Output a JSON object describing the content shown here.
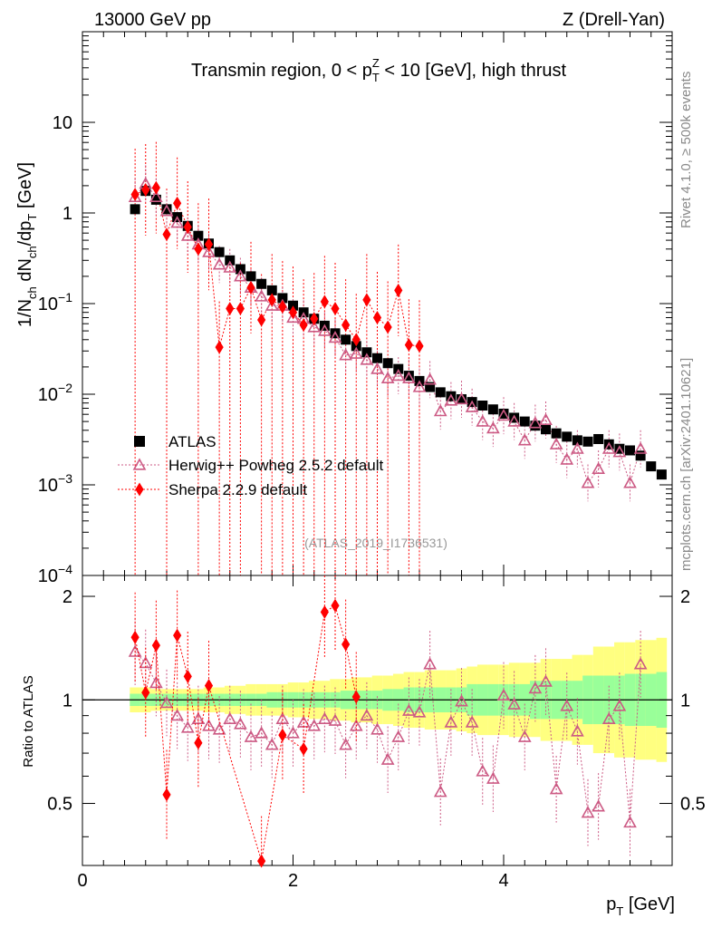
{
  "header": {
    "left": "13000 GeV pp",
    "right": "Z (Drell-Yan)"
  },
  "side_labels": {
    "rivet": "Rivet 4.1.0, ≥ 500k events",
    "mcplots": "mcplots.cern.ch [arXiv:2401.10621]"
  },
  "chart_data": {
    "type": "scatter",
    "title": "Transmin region, 0 < pTZ < 10 [GeV], high thrust",
    "title_parts": {
      "before": "Transmin region, 0 < p",
      "sup": "Z",
      "sub": "T",
      "after": " < 10 [GeV], high thrust"
    },
    "analysis_tag": "(ATLAS_2019_I1736531)",
    "xlabel": "pT [GeV]",
    "ylabel": "1/Nch dNch/dpT [GeV]",
    "ratio_ylabel": "Ratio to ATLAS",
    "xlim": [
      0,
      5.6
    ],
    "ylim": [
      0.0001,
      100
    ],
    "ratio_ylim": [
      0.33,
      2.3
    ],
    "x_ticks": [
      "0",
      "2",
      "4"
    ],
    "y_ticks": [
      "10^-4",
      "10^-3",
      "10^-2",
      "10^-1",
      "1",
      "10"
    ],
    "ratio_ticks": [
      "0.5",
      "1",
      "2"
    ],
    "x": [
      0.5,
      0.6,
      0.7,
      0.8,
      0.9,
      1.0,
      1.1,
      1.2,
      1.3,
      1.4,
      1.5,
      1.6,
      1.7,
      1.8,
      1.9,
      2.0,
      2.1,
      2.2,
      2.3,
      2.4,
      2.5,
      2.6,
      2.7,
      2.8,
      2.9,
      3.0,
      3.1,
      3.2,
      3.3,
      3.4,
      3.5,
      3.6,
      3.7,
      3.8,
      3.9,
      4.0,
      4.1,
      4.2,
      4.3,
      4.4,
      4.5,
      4.6,
      4.7,
      4.8,
      4.9,
      5.0,
      5.1,
      5.2,
      5.3,
      5.4,
      5.5
    ],
    "legend": [
      "ATLAS",
      "Herwig++ Powheg 2.5.2 default",
      "Sherpa 2.2.9 default"
    ],
    "series": [
      {
        "name": "ATLAS",
        "color": "#000000",
        "marker": "square",
        "values": [
          1.1,
          1.75,
          1.4,
          1.1,
          0.9,
          0.72,
          0.56,
          0.46,
          0.37,
          0.3,
          0.24,
          0.2,
          0.165,
          0.14,
          0.115,
          0.095,
          0.08,
          0.068,
          0.057,
          0.047,
          0.04,
          0.034,
          0.029,
          0.025,
          0.022,
          0.019,
          0.016,
          0.014,
          0.012,
          0.0105,
          0.0095,
          0.0088,
          0.0082,
          0.0075,
          0.0068,
          0.0061,
          0.0055,
          0.005,
          0.0045,
          0.0041,
          0.0037,
          0.0034,
          0.0031,
          0.003,
          0.0032,
          0.0028,
          0.0025,
          0.0024,
          0.0021,
          0.0016,
          0.0013
        ]
      },
      {
        "name": "Herwig++ Powheg 2.5.2 default",
        "color": "#cc5a84",
        "marker": "triangle",
        "values": [
          1.5,
          2.1,
          1.5,
          1.05,
          0.78,
          0.56,
          0.45,
          0.37,
          0.27,
          0.25,
          0.2,
          0.15,
          0.12,
          0.095,
          0.095,
          0.07,
          0.068,
          0.055,
          0.05,
          0.042,
          0.027,
          0.028,
          0.024,
          0.019,
          0.015,
          0.016,
          0.015,
          0.012,
          0.0145,
          0.0065,
          0.0085,
          0.0088,
          0.0072,
          0.005,
          0.0042,
          0.0058,
          0.005,
          0.0031,
          0.0048,
          0.0052,
          0.0028,
          0.0019,
          0.0025,
          0.00105,
          0.0015,
          0.0025,
          0.0023,
          0.00105,
          0.0025
        ]
      },
      {
        "name": "Sherpa 2.2.9 default",
        "color": "#ff0000",
        "marker": "diamond",
        "values": [
          1.6,
          1.8,
          1.9,
          0.58,
          1.28,
          0.7,
          0.4,
          0.45,
          0.033,
          0.088,
          0.088,
          0.15,
          0.066,
          0.11,
          0.092,
          0.08,
          0.058,
          0.068,
          0.105,
          0.088,
          0.058,
          0.04,
          0.11,
          0.07,
          0.055,
          0.14,
          0.035,
          0.034
        ]
      }
    ],
    "ratio_series": [
      {
        "name": "Herwig++ Powheg 2.5.2 default",
        "values": [
          1.38,
          1.28,
          1.12,
          0.98,
          0.9,
          0.83,
          0.88,
          0.84,
          0.82,
          0.88,
          0.85,
          0.78,
          0.8,
          0.74,
          0.88,
          0.8,
          0.86,
          0.84,
          0.88,
          0.87,
          0.74,
          0.84,
          0.9,
          0.82,
          0.67,
          0.78,
          0.93,
          0.92,
          1.27,
          0.54,
          0.86,
          0.99,
          0.86,
          0.62,
          0.59,
          1.03,
          0.97,
          0.78,
          1.08,
          1.13,
          0.55,
          0.96,
          0.81,
          0.47,
          0.49,
          0.88,
          0.96,
          0.44,
          1.27
        ]
      },
      {
        "name": "Sherpa 2.2.9 default",
        "values": [
          1.52,
          1.05,
          1.44,
          0.53,
          1.54,
          1.17,
          0.75,
          1.1,
          0.34,
          0.79,
          0.72,
          1.8,
          1.88,
          1.45,
          1.02
        ]
      }
    ],
    "ratio_x_sherpa": [
      0.5,
      0.6,
      0.7,
      0.8,
      0.9,
      1.0,
      1.1,
      1.2,
      1.7,
      1.9,
      2.1,
      2.3,
      2.4,
      2.5,
      2.6
    ],
    "band_inner": [
      0.96,
      0.96,
      0.96,
      0.96,
      0.96,
      0.96,
      0.96,
      0.96,
      0.96,
      0.96,
      0.96,
      0.96,
      0.96,
      0.95,
      0.95,
      0.95,
      0.95,
      0.95,
      0.95,
      0.95,
      0.94,
      0.94,
      0.94,
      0.94,
      0.93,
      0.93,
      0.92,
      0.92,
      0.92,
      0.92,
      0.92,
      0.92,
      0.9,
      0.9,
      0.9,
      0.9,
      0.9,
      0.9,
      0.88,
      0.88,
      0.88,
      0.88,
      0.88,
      0.85,
      0.85,
      0.85,
      0.85,
      0.84,
      0.84,
      0.84,
      0.83
    ],
    "band_outer": [
      0.92,
      0.92,
      0.93,
      0.93,
      0.93,
      0.93,
      0.93,
      0.92,
      0.92,
      0.91,
      0.91,
      0.9,
      0.9,
      0.9,
      0.9,
      0.89,
      0.89,
      0.88,
      0.88,
      0.87,
      0.87,
      0.86,
      0.86,
      0.85,
      0.85,
      0.84,
      0.83,
      0.83,
      0.82,
      0.82,
      0.82,
      0.81,
      0.8,
      0.79,
      0.79,
      0.79,
      0.78,
      0.78,
      0.78,
      0.76,
      0.76,
      0.76,
      0.74,
      0.74,
      0.7,
      0.7,
      0.68,
      0.68,
      0.67,
      0.67,
      0.66
    ]
  }
}
